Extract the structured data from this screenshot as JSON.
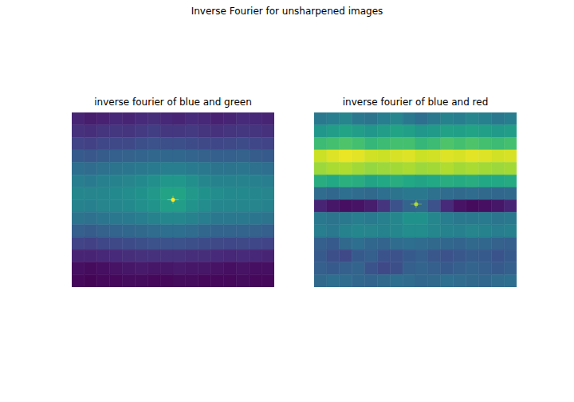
{
  "title": "Inverse Fourier for unsharpened images",
  "chart_data": [
    {
      "type": "heatmap",
      "title": "inverse fourier of blue and green",
      "tick_labels": false,
      "peak": {
        "x": 8,
        "y": 7,
        "value": 1
      },
      "cells": [
        [
          0.1,
          0.08,
          0.09,
          0.11,
          0.1,
          0.12,
          0.13,
          0.11,
          0.1,
          0.12,
          0.11,
          0.09,
          0.1,
          0.12,
          0.11,
          0.1
        ],
        [
          0.14,
          0.13,
          0.15,
          0.16,
          0.15,
          0.17,
          0.18,
          0.16,
          0.16,
          0.17,
          0.15,
          0.14,
          0.15,
          0.16,
          0.15,
          0.14
        ],
        [
          0.2,
          0.19,
          0.21,
          0.22,
          0.22,
          0.24,
          0.25,
          0.24,
          0.24,
          0.23,
          0.22,
          0.21,
          0.22,
          0.23,
          0.21,
          0.2
        ],
        [
          0.28,
          0.27,
          0.29,
          0.3,
          0.31,
          0.32,
          0.33,
          0.33,
          0.33,
          0.32,
          0.31,
          0.3,
          0.3,
          0.31,
          0.29,
          0.28
        ],
        [
          0.36,
          0.35,
          0.37,
          0.38,
          0.39,
          0.4,
          0.41,
          0.42,
          0.42,
          0.41,
          0.4,
          0.38,
          0.38,
          0.39,
          0.37,
          0.36
        ],
        [
          0.42,
          0.41,
          0.43,
          0.44,
          0.45,
          0.47,
          0.49,
          0.52,
          0.52,
          0.49,
          0.46,
          0.44,
          0.44,
          0.44,
          0.43,
          0.42
        ],
        [
          0.46,
          0.45,
          0.46,
          0.47,
          0.48,
          0.5,
          0.53,
          0.58,
          0.58,
          0.53,
          0.5,
          0.48,
          0.47,
          0.47,
          0.46,
          0.45
        ],
        [
          0.44,
          0.43,
          0.45,
          0.46,
          0.47,
          0.49,
          0.51,
          0.55,
          0.55,
          0.51,
          0.48,
          0.46,
          0.46,
          0.46,
          0.45,
          0.44
        ],
        [
          0.38,
          0.37,
          0.39,
          0.4,
          0.41,
          0.42,
          0.44,
          0.46,
          0.46,
          0.44,
          0.42,
          0.4,
          0.4,
          0.4,
          0.39,
          0.38
        ],
        [
          0.3,
          0.29,
          0.31,
          0.32,
          0.33,
          0.34,
          0.35,
          0.36,
          0.36,
          0.35,
          0.33,
          0.32,
          0.32,
          0.32,
          0.31,
          0.3
        ],
        [
          0.2,
          0.19,
          0.21,
          0.22,
          0.23,
          0.24,
          0.25,
          0.25,
          0.25,
          0.24,
          0.23,
          0.22,
          0.21,
          0.22,
          0.21,
          0.2
        ],
        [
          0.1,
          0.1,
          0.11,
          0.12,
          0.13,
          0.14,
          0.14,
          0.14,
          0.14,
          0.13,
          0.13,
          0.12,
          0.11,
          0.12,
          0.11,
          0.1
        ],
        [
          0.04,
          0.03,
          0.04,
          0.05,
          0.06,
          0.07,
          0.06,
          0.06,
          0.07,
          0.06,
          0.06,
          0.05,
          0.04,
          0.05,
          0.04,
          0.04
        ],
        [
          0.02,
          0.01,
          0.02,
          0.02,
          0.03,
          0.03,
          0.02,
          0.02,
          0.03,
          0.03,
          0.02,
          0.02,
          0.02,
          0.03,
          0.02,
          0.02
        ]
      ]
    },
    {
      "type": "heatmap",
      "title": "inverse fourier of blue and red",
      "tick_labels": false,
      "peak": {
        "x": 8.06,
        "y": 7.35,
        "value": 0.88
      },
      "cells": [
        [
          0.4,
          0.42,
          0.45,
          0.4,
          0.38,
          0.42,
          0.45,
          0.4,
          0.36,
          0.4,
          0.44,
          0.42,
          0.45,
          0.43,
          0.4,
          0.42
        ],
        [
          0.52,
          0.55,
          0.58,
          0.55,
          0.52,
          0.55,
          0.58,
          0.56,
          0.52,
          0.54,
          0.57,
          0.56,
          0.58,
          0.56,
          0.54,
          0.55
        ],
        [
          0.68,
          0.7,
          0.72,
          0.7,
          0.66,
          0.68,
          0.7,
          0.7,
          0.66,
          0.68,
          0.72,
          0.7,
          0.72,
          0.7,
          0.68,
          0.7
        ],
        [
          0.92,
          0.95,
          0.97,
          0.96,
          0.93,
          0.92,
          0.94,
          0.95,
          0.92,
          0.93,
          0.95,
          0.94,
          0.96,
          0.95,
          0.93,
          0.94
        ],
        [
          0.85,
          0.87,
          0.88,
          0.86,
          0.84,
          0.85,
          0.86,
          0.87,
          0.85,
          0.86,
          0.88,
          0.86,
          0.87,
          0.86,
          0.85,
          0.86
        ],
        [
          0.62,
          0.6,
          0.63,
          0.62,
          0.58,
          0.6,
          0.62,
          0.6,
          0.58,
          0.6,
          0.62,
          0.61,
          0.62,
          0.6,
          0.6,
          0.61
        ],
        [
          0.35,
          0.33,
          0.36,
          0.35,
          0.34,
          0.36,
          0.38,
          0.4,
          0.4,
          0.37,
          0.35,
          0.34,
          0.35,
          0.34,
          0.33,
          0.34
        ],
        [
          0.1,
          0.06,
          0.04,
          0.05,
          0.08,
          0.15,
          0.25,
          0.32,
          0.34,
          0.25,
          0.12,
          0.05,
          0.03,
          0.04,
          0.06,
          0.1
        ],
        [
          0.4,
          0.38,
          0.4,
          0.42,
          0.41,
          0.43,
          0.46,
          0.5,
          0.5,
          0.46,
          0.42,
          0.4,
          0.4,
          0.41,
          0.39,
          0.4
        ],
        [
          0.42,
          0.4,
          0.44,
          0.46,
          0.45,
          0.44,
          0.46,
          0.48,
          0.48,
          0.46,
          0.44,
          0.43,
          0.45,
          0.44,
          0.42,
          0.43
        ],
        [
          0.3,
          0.28,
          0.34,
          0.36,
          0.33,
          0.32,
          0.35,
          0.36,
          0.35,
          0.34,
          0.33,
          0.32,
          0.34,
          0.33,
          0.31,
          0.3
        ],
        [
          0.28,
          0.24,
          0.22,
          0.28,
          0.3,
          0.26,
          0.25,
          0.28,
          0.3,
          0.27,
          0.25,
          0.27,
          0.29,
          0.28,
          0.26,
          0.28
        ],
        [
          0.3,
          0.28,
          0.3,
          0.32,
          0.26,
          0.22,
          0.24,
          0.3,
          0.32,
          0.3,
          0.28,
          0.3,
          0.32,
          0.3,
          0.28,
          0.3
        ],
        [
          0.34,
          0.36,
          0.35,
          0.33,
          0.32,
          0.34,
          0.36,
          0.35,
          0.33,
          0.34,
          0.36,
          0.35,
          0.34,
          0.33,
          0.35,
          0.36
        ]
      ]
    }
  ]
}
